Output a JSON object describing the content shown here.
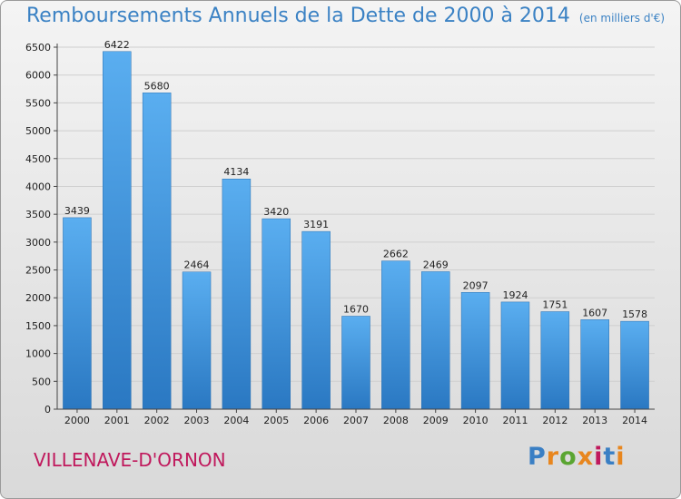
{
  "chart_data": {
    "type": "bar",
    "title": "Remboursements Annuels de la Dette de 2000 à 2014",
    "unit_note": "(en milliers d'€)",
    "categories": [
      "2000",
      "2001",
      "2002",
      "2003",
      "2004",
      "2005",
      "2006",
      "2007",
      "2008",
      "2009",
      "2010",
      "2011",
      "2012",
      "2013",
      "2014"
    ],
    "values": [
      3439,
      6422,
      5680,
      2464,
      4134,
      3420,
      3191,
      1670,
      2662,
      2469,
      2097,
      1924,
      1751,
      1607,
      1578
    ],
    "data_labels": [
      "3439",
      "6422",
      "5680",
      "2464",
      "4134",
      "3420",
      "3191",
      "1670",
      "2662",
      "2469",
      "2097",
      "1924",
      "1751",
      "1607",
      "1578"
    ],
    "yticks": [
      "0",
      "500",
      "1000",
      "1500",
      "2000",
      "2500",
      "3000",
      "3500",
      "4000",
      "4500",
      "5000",
      "5500",
      "6000",
      "6500"
    ],
    "ylim": [
      0,
      6500
    ],
    "grid": true,
    "bar_color": "#3d8fd6",
    "grid_color": "#cfcfcf"
  },
  "footer": {
    "town": "VILLENAVE-D'ORNON",
    "logo": "Proxiti",
    "logo_colors": [
      "#3a7fc4",
      "#e8861e",
      "#5aa531",
      "#e8861e",
      "#c0185c",
      "#3a7fc4",
      "#e8861e"
    ]
  },
  "colors": {
    "title": "#3b82c4",
    "town": "#c0185c"
  }
}
